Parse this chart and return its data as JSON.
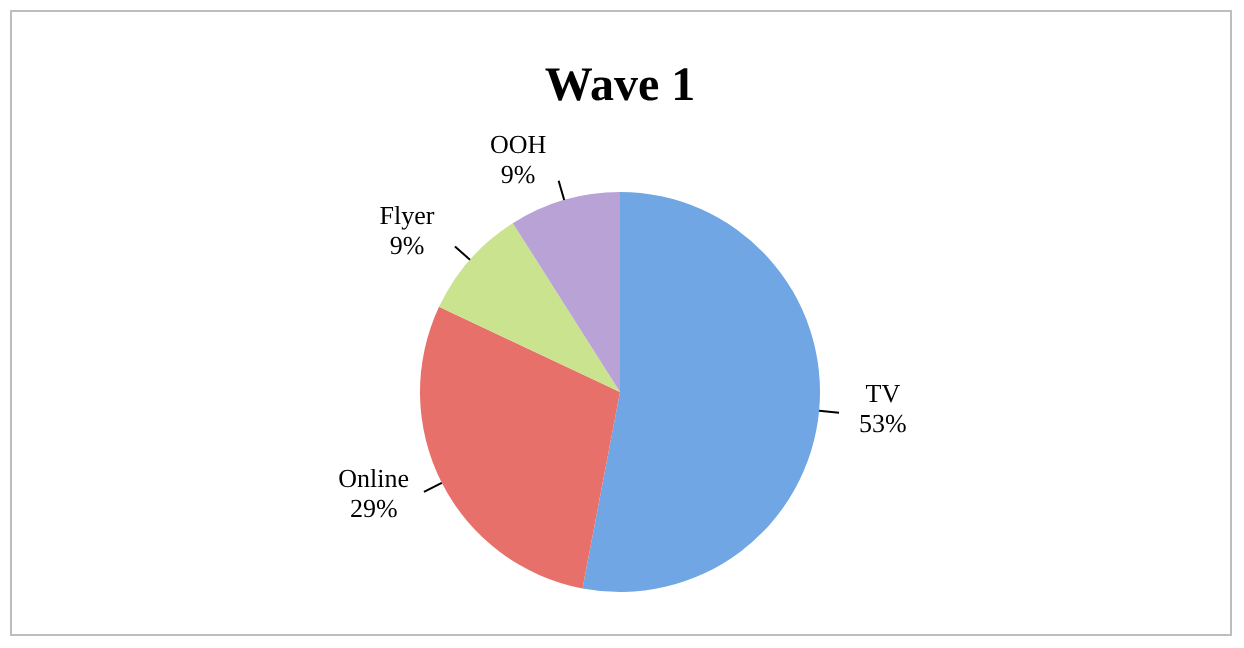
{
  "chart_data": {
    "type": "pie",
    "title": "Wave 1",
    "categories": [
      "TV",
      "Online",
      "Flyer",
      "OOH"
    ],
    "values": [
      53,
      29,
      9,
      9
    ],
    "value_labels": [
      "53%",
      "29%",
      "9%",
      "9%"
    ],
    "colors": [
      "#6fa6e3",
      "#e8706a",
      "#c9e38f",
      "#b8a2d6"
    ]
  }
}
